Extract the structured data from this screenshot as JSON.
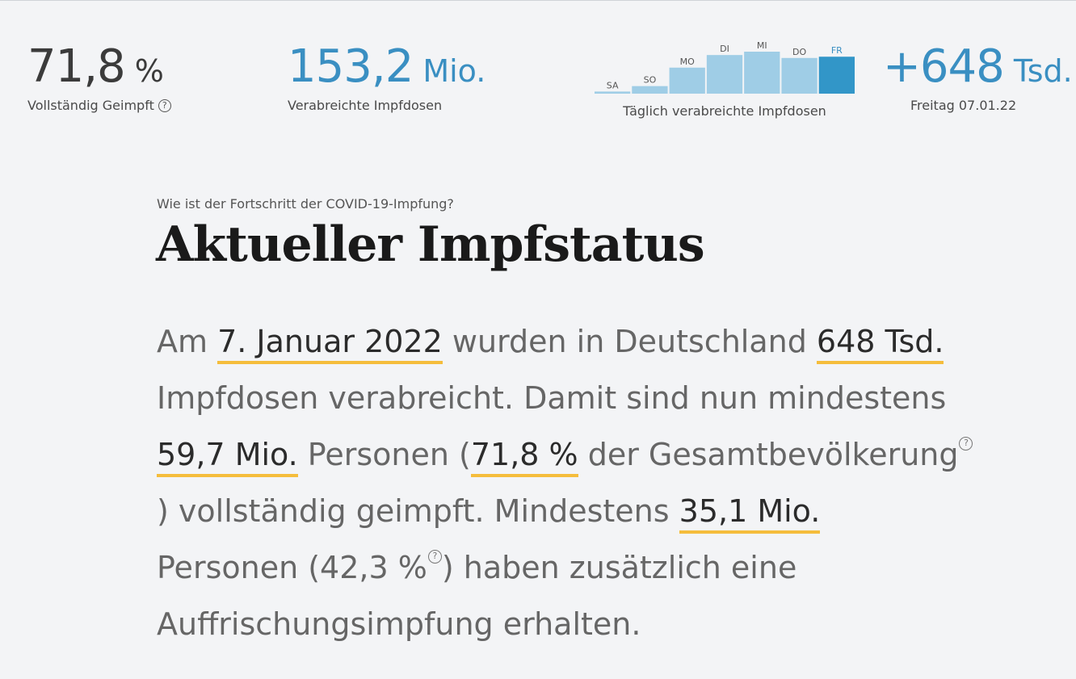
{
  "stats": {
    "vaccinated": {
      "value": "71,8",
      "unit": "%",
      "label": "Vollständig Geimpft",
      "info_icon": "question-circle-icon"
    },
    "doses": {
      "value": "153,2",
      "unit": "Mio.",
      "label": "Verabreichte Impfdosen"
    },
    "daily": {
      "value": "+648",
      "unit": "Tsd.",
      "label": "Freitag 07.01.22"
    }
  },
  "mini_chart_label": "Täglich verabreichte Impfdosen",
  "chart_data": {
    "type": "bar",
    "categories": [
      "SA",
      "SO",
      "MO",
      "DI",
      "MI",
      "DO",
      "FR"
    ],
    "values": [
      0.05,
      0.18,
      0.62,
      0.92,
      1.0,
      0.85,
      0.88
    ],
    "highlight_index": 6,
    "colors": {
      "normal": "#9fcde6",
      "highlight": "#3296c8",
      "label_normal": "#555555",
      "label_highlight": "#3a8fc2"
    }
  },
  "main": {
    "kicker": "Wie ist der Fortschritt der COVID-19-Impfung?",
    "title": "Aktueller Impfstatus",
    "summary": {
      "l1_a": "Am ",
      "date": "7. Januar 2022",
      "l1_b": " wurden in Deutschland ",
      "doses_day": "648 Tsd.",
      "l2": "Impfdosen verabreicht. Damit sind nun mindestens",
      "vaccinated_people": "59,7 Mio.",
      "l3_a": " Personen (",
      "vaccinated_pct": "71,8 %",
      "l3_b": " der Gesamtbevölkerung",
      "l4_a": ") vollständig geimpft. Mindestens ",
      "boosted_people": "35,1 Mio.",
      "l5_a": "Personen (42,3 %",
      "l5_b": ") haben zusätzlich eine",
      "l6": "Auffrischungsimpfung erhalten."
    }
  },
  "colors": {
    "accent": "#3a8fc2",
    "highlight_underline": "#f5bd3c",
    "background": "#f3f4f6"
  }
}
